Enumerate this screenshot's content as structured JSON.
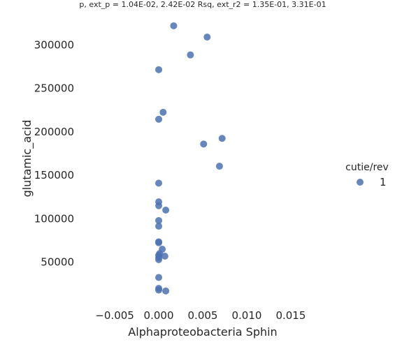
{
  "chart_data": {
    "type": "scatter",
    "title": "p, ext_p = 1.04E-02, 2.42E-02 Rsq, ext_r2 = 1.35E-01, 3.31E-01",
    "xlabel": "Alphaproteobacteria Sphin",
    "ylabel": "glutamic_acid",
    "xlim": [
      -0.0085,
      0.0185
    ],
    "ylim": [
      0,
      334000
    ],
    "xticks": [
      -0.005,
      0.0,
      0.005,
      0.01,
      0.015
    ],
    "xtick_labels": [
      "−0.005",
      "0.000",
      "0.005",
      "0.010",
      "0.015"
    ],
    "yticks": [
      50000,
      100000,
      150000,
      200000,
      250000,
      300000
    ],
    "ytick_labels": [
      "50000",
      "100000",
      "150000",
      "200000",
      "250000",
      "300000"
    ],
    "grid": false,
    "legend": {
      "title": "cutie/rev",
      "placement": "right",
      "entries": [
        "1"
      ]
    },
    "series": [
      {
        "name": "1",
        "color": "#4c72b0",
        "points": [
          [
            0.0017,
            322000
          ],
          [
            0.0055,
            309000
          ],
          [
            0.0036,
            288500
          ],
          [
            0.0,
            271500
          ],
          [
            0.0005,
            222500
          ],
          [
            0.0,
            214500
          ],
          [
            0.0072,
            192500
          ],
          [
            0.0051,
            186000
          ],
          [
            0.0069,
            160500
          ],
          [
            0.0,
            141000
          ],
          [
            0.0,
            119500
          ],
          [
            0.0,
            115000
          ],
          [
            0.0008,
            110000
          ],
          [
            0.0,
            98000
          ],
          [
            0.0,
            91500
          ],
          [
            0.0,
            73500
          ],
          [
            0.0,
            72500
          ],
          [
            0.0004,
            65000
          ],
          [
            0.0001,
            60000
          ],
          [
            0.0,
            58000
          ],
          [
            0.0007,
            57000
          ],
          [
            0.0,
            55500
          ],
          [
            0.0,
            53000
          ],
          [
            0.0,
            32500
          ],
          [
            0.0,
            20000
          ],
          [
            0.0,
            18000
          ],
          [
            0.0008,
            17000
          ]
        ]
      }
    ]
  }
}
